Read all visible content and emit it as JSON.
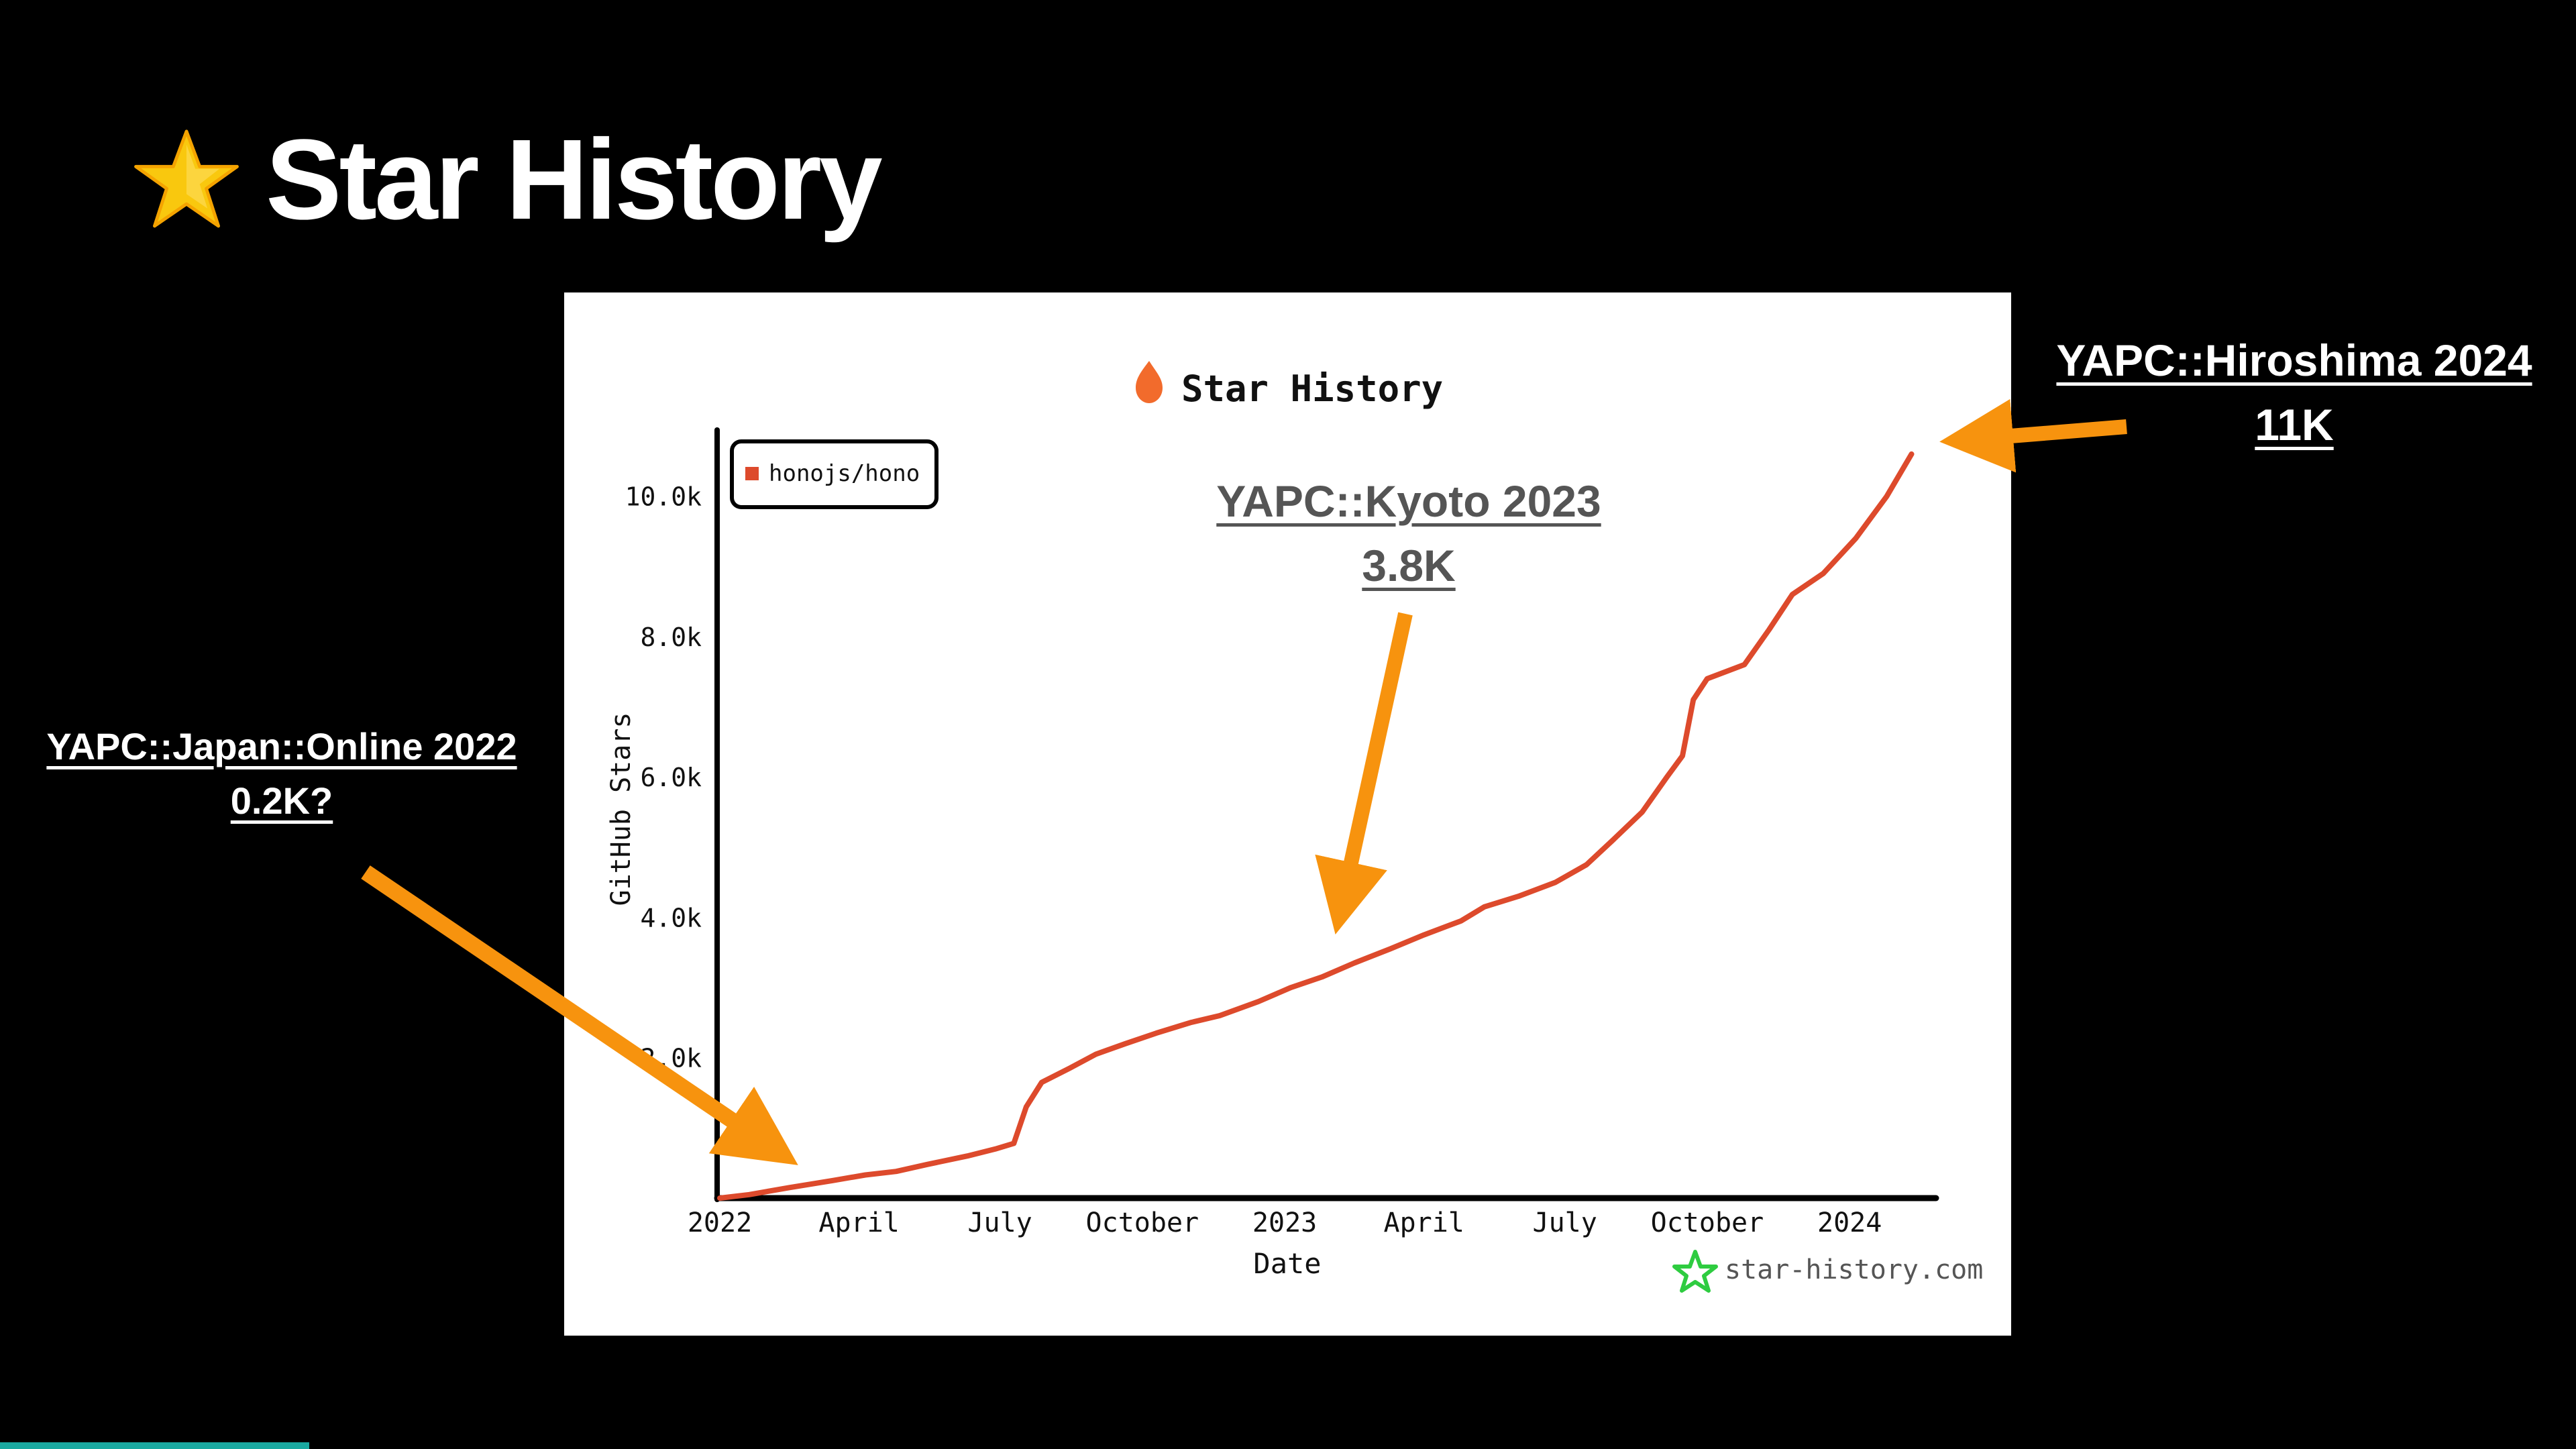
{
  "slide": {
    "title": "Star History",
    "icon": "star-emoji-icon"
  },
  "callouts": {
    "left": {
      "line1": "YAPC::Japan::Online 2022",
      "line2": "0.2K?"
    },
    "middle": {
      "line1": "YAPC::Kyoto 2023",
      "line2": "3.8K"
    },
    "right": {
      "line1": "YAPC::Hiroshima 2024",
      "line2": "11K"
    }
  },
  "colors": {
    "background": "#000000",
    "accent_arrow": "#f7930e",
    "series_line": "#dd4a2c",
    "watermark_star": "#2ecc40",
    "title_flame": "#f26b2c",
    "progress": "#1aa9a0"
  },
  "progress": {
    "fraction": 0.12
  },
  "chart_data": {
    "type": "line",
    "title": "Star History",
    "xlabel": "Date",
    "ylabel": "GitHub Stars",
    "x_type": "date",
    "xlim": [
      "2022-01-01",
      "2024-02-15"
    ],
    "ylim": [
      0,
      10800
    ],
    "x_ticks": [
      {
        "date": "2022-01-01",
        "label": "2022"
      },
      {
        "date": "2022-04-01",
        "label": "April"
      },
      {
        "date": "2022-07-01",
        "label": "July"
      },
      {
        "date": "2022-10-01",
        "label": "October"
      },
      {
        "date": "2023-01-01",
        "label": "2023"
      },
      {
        "date": "2023-04-01",
        "label": "April"
      },
      {
        "date": "2023-07-01",
        "label": "July"
      },
      {
        "date": "2023-10-01",
        "label": "October"
      },
      {
        "date": "2024-01-01",
        "label": "2024"
      }
    ],
    "y_ticks": [
      {
        "value": 2000,
        "label": "2.0k"
      },
      {
        "value": 4000,
        "label": "4.0k"
      },
      {
        "value": 6000,
        "label": "6.0k"
      },
      {
        "value": 8000,
        "label": "8.0k"
      },
      {
        "value": 10000,
        "label": "10.0k"
      }
    ],
    "legend": {
      "position": "top-left"
    },
    "grid": false,
    "watermark": "star-history.com",
    "series": [
      {
        "name": "honojs/hono",
        "color": "#dd4a2c",
        "points": [
          [
            "2022-01-01",
            0
          ],
          [
            "2022-01-20",
            50
          ],
          [
            "2022-02-15",
            150
          ],
          [
            "2022-03-15",
            250
          ],
          [
            "2022-04-05",
            330
          ],
          [
            "2022-04-25",
            380
          ],
          [
            "2022-05-15",
            480
          ],
          [
            "2022-06-10",
            600
          ],
          [
            "2022-06-28",
            700
          ],
          [
            "2022-07-10",
            780
          ],
          [
            "2022-07-18",
            1300
          ],
          [
            "2022-07-28",
            1650
          ],
          [
            "2022-08-15",
            1850
          ],
          [
            "2022-09-01",
            2050
          ],
          [
            "2022-09-20",
            2200
          ],
          [
            "2022-10-10",
            2350
          ],
          [
            "2022-11-01",
            2500
          ],
          [
            "2022-11-20",
            2600
          ],
          [
            "2022-12-15",
            2800
          ],
          [
            "2023-01-05",
            3000
          ],
          [
            "2023-01-25",
            3150
          ],
          [
            "2023-02-15",
            3350
          ],
          [
            "2023-03-10",
            3550
          ],
          [
            "2023-04-01",
            3750
          ],
          [
            "2023-04-25",
            3950
          ],
          [
            "2023-05-10",
            4150
          ],
          [
            "2023-06-01",
            4300
          ],
          [
            "2023-06-25",
            4500
          ],
          [
            "2023-07-15",
            4750
          ],
          [
            "2023-08-01",
            5100
          ],
          [
            "2023-08-20",
            5500
          ],
          [
            "2023-09-05",
            6000
          ],
          [
            "2023-09-15",
            6300
          ],
          [
            "2023-09-22",
            7100
          ],
          [
            "2023-10-01",
            7400
          ],
          [
            "2023-10-25",
            7600
          ],
          [
            "2023-11-10",
            8100
          ],
          [
            "2023-11-25",
            8600
          ],
          [
            "2023-12-15",
            8900
          ],
          [
            "2024-01-05",
            9400
          ],
          [
            "2024-01-25",
            10000
          ],
          [
            "2024-02-10",
            10600
          ]
        ]
      }
    ]
  }
}
